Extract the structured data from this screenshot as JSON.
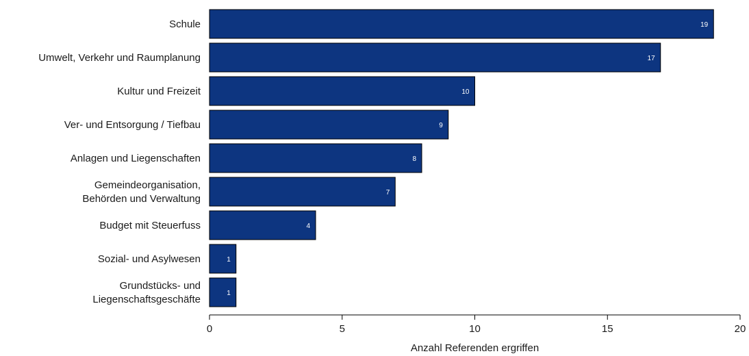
{
  "chart_data": {
    "type": "bar",
    "orientation": "horizontal",
    "categories": [
      [
        "Schule"
      ],
      [
        "Umwelt, Verkehr und Raumplanung"
      ],
      [
        "Kultur und Freizeit"
      ],
      [
        "Ver- und Entsorgung / Tiefbau"
      ],
      [
        "Anlagen und Liegenschaften"
      ],
      [
        "Gemeindeorganisation,",
        "Behörden und Verwaltung"
      ],
      [
        "Budget mit Steuerfuss"
      ],
      [
        "Sozial- und Asylwesen"
      ],
      [
        "Grundstücks- und",
        "Liegenschaftsgeschäfte"
      ]
    ],
    "values": [
      19,
      17,
      10,
      9,
      8,
      7,
      4,
      1,
      1
    ],
    "value_labels": [
      "19",
      "17",
      "10",
      "9",
      "8",
      "7",
      "4",
      "1",
      "1"
    ],
    "xlabel": "Anzahl Referenden ergriffen",
    "ylabel": "",
    "xlim": [
      0,
      20
    ],
    "xticks": [
      0,
      5,
      10,
      15,
      20
    ],
    "xtick_labels": [
      "0",
      "5",
      "10",
      "15",
      "20"
    ],
    "grid": false,
    "bar_color": "#0d3580",
    "bar_edge_color": "#000000"
  }
}
